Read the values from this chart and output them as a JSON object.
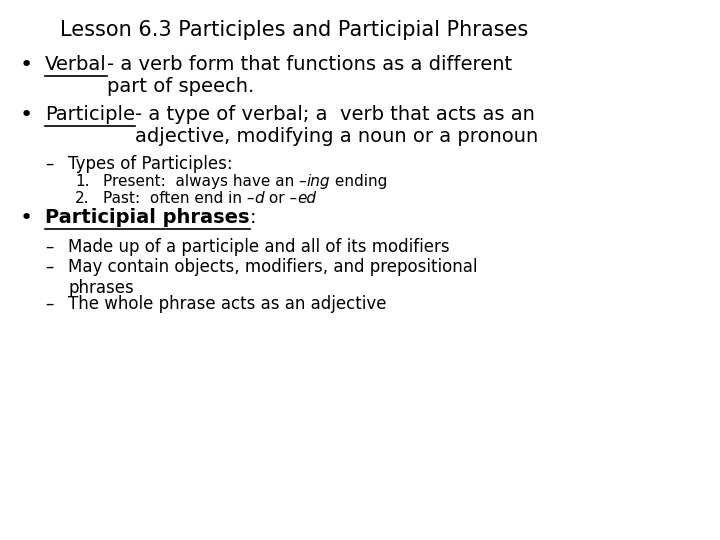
{
  "title": "Lesson 6.3 Participles and Participial Phrases",
  "bg_color": "#ffffff",
  "text_color": "#000000",
  "title_fontsize": 15,
  "body_fontsize": 14,
  "sub_fontsize": 12,
  "small_fontsize": 11,
  "font_family": "DejaVu Sans",
  "content": [
    {
      "type": "title",
      "text": "Lesson 6.3 Participles and Participial Phrases"
    },
    {
      "type": "bullet",
      "segments": [
        {
          "text": "Verbal",
          "bold": false,
          "italic": false,
          "underline": true
        },
        {
          "text": "- a verb form that functions as a different\npart of speech.",
          "bold": false,
          "italic": false,
          "underline": false
        }
      ]
    },
    {
      "type": "bullet",
      "segments": [
        {
          "text": "Participle",
          "bold": false,
          "italic": false,
          "underline": true
        },
        {
          "text": "- a type of verbal; a  verb that acts as an\nadjective, modifying a noun or a pronoun",
          "bold": false,
          "italic": false,
          "underline": false
        }
      ]
    },
    {
      "type": "dash1",
      "segments": [
        {
          "text": "Types of Participles:",
          "bold": false,
          "italic": false,
          "underline": false
        }
      ]
    },
    {
      "type": "numbered",
      "num": "1.",
      "segments": [
        {
          "text": "Present:  always have an –",
          "bold": false,
          "italic": false,
          "underline": false
        },
        {
          "text": "ing",
          "bold": false,
          "italic": true,
          "underline": false
        },
        {
          "text": " ending",
          "bold": false,
          "italic": false,
          "underline": false
        }
      ]
    },
    {
      "type": "numbered",
      "num": "2.",
      "segments": [
        {
          "text": "Past:  often end in –",
          "bold": false,
          "italic": false,
          "underline": false
        },
        {
          "text": "d",
          "bold": false,
          "italic": true,
          "underline": false
        },
        {
          "text": " or –",
          "bold": false,
          "italic": false,
          "underline": false
        },
        {
          "text": "ed",
          "bold": false,
          "italic": true,
          "underline": false
        }
      ]
    },
    {
      "type": "bullet",
      "segments": [
        {
          "text": "Participial phrases",
          "bold": true,
          "italic": false,
          "underline": true
        },
        {
          "text": ":",
          "bold": false,
          "italic": false,
          "underline": false
        }
      ]
    },
    {
      "type": "dash2",
      "segments": [
        {
          "text": "Made up of a participle and all of its modifiers",
          "bold": false,
          "italic": false,
          "underline": false
        }
      ]
    },
    {
      "type": "dash2",
      "segments": [
        {
          "text": "May contain objects, modifiers, and prepositional\nphrases",
          "bold": false,
          "italic": false,
          "underline": false
        }
      ]
    },
    {
      "type": "dash2",
      "segments": [
        {
          "text": "The whole phrase acts as an adjective",
          "bold": false,
          "italic": false,
          "underline": false
        }
      ]
    }
  ]
}
